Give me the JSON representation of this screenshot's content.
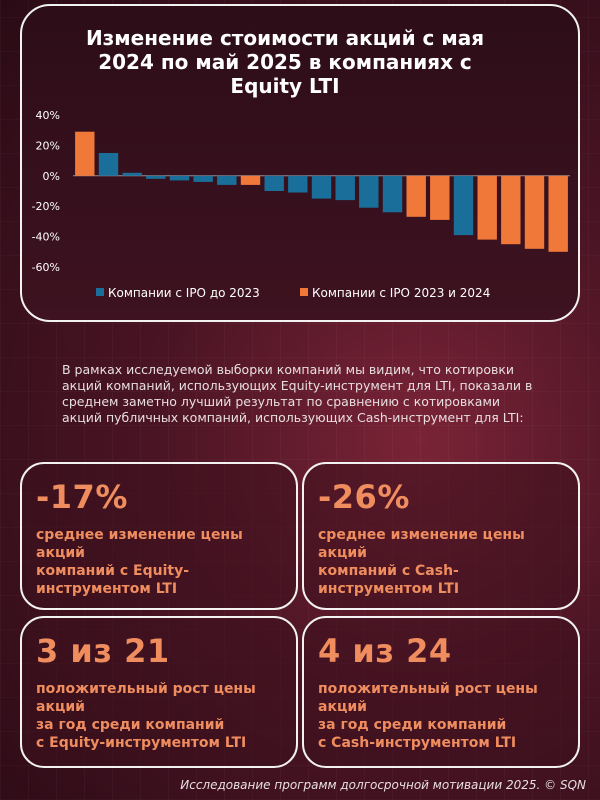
{
  "colors": {
    "series1": "#1a6f9a",
    "series2": "#f0793a",
    "accent": "#f08d5f"
  },
  "chart_data": {
    "type": "bar",
    "title": "Изменение стоимости акций с мая 2024 по май 2025 в компаниях с Equity LTI",
    "ylim": [
      -60,
      40
    ],
    "yticks": [
      40,
      20,
      0,
      -20,
      -40,
      -60
    ],
    "ytick_labels": [
      "40%",
      "20%",
      "0%",
      "-20%",
      "-40%",
      "-60%"
    ],
    "xlabel": "",
    "ylabel": "",
    "legend": [
      {
        "name": "Компании с IPO до 2023",
        "color": "#1a6f9a"
      },
      {
        "name": "Компании с IPO 2023 и 2024",
        "color": "#f0793a"
      }
    ],
    "legend_position": "bottom",
    "values": [
      29,
      15,
      2,
      -2,
      -3,
      -4,
      -6,
      -6,
      -10,
      -11,
      -15,
      -16,
      -21,
      -24,
      -27,
      -29,
      -39,
      -42,
      -45,
      -48,
      -50
    ],
    "groups": [
      1,
      0,
      0,
      0,
      0,
      0,
      0,
      1,
      0,
      0,
      0,
      0,
      0,
      0,
      1,
      1,
      0,
      1,
      1,
      1,
      1
    ]
  },
  "intro_text": "В рамках исследуемой выборки компаний мы видим, что котировки акций компаний, использующих Equity-инструмент для LTI, показали в среднем заметно лучший результат по сравнению с котировками акций публичных компаний, использующих Cash-инструмент для LTI:",
  "cards": [
    {
      "big": "-17%",
      "desc": "среднее изменение цены\nакций\nкомпаний с Equity-\nинструментом LTI"
    },
    {
      "big": "-26%",
      "desc": "среднее изменение цены\nакций\nкомпаний с Cash-\nинструментом LTI"
    },
    {
      "big": "3 из 21",
      "desc": "положительный рост цены\nакций\nза год среди компаний\nс Equity-инструментом LTI"
    },
    {
      "big": "4 из 24",
      "desc": "положительный рост цены\nакций\nза год среди компаний\nс Cash-инструментом LTI"
    }
  ],
  "footer": "Исследование программ долгосрочной мотивации 2025. © SQN"
}
